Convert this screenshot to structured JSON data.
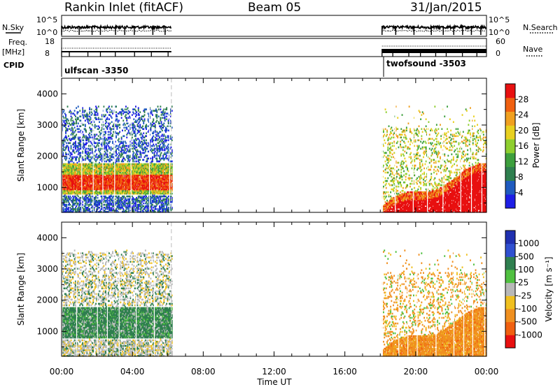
{
  "header": {
    "station": "Rankin Inlet (fitACF)",
    "beam": "Beam 05",
    "date": "31/Jan/2015"
  },
  "strip_labels": {
    "nsky": "N.Sky",
    "nsky_ticks": [
      "10^5",
      "10^0"
    ],
    "nsearch": "N.Search",
    "freq": "Freq.",
    "freq_unit": "[MHz]",
    "freq_ticks": [
      "18",
      "8"
    ],
    "nave": "Nave",
    "nave_ticks": [
      "60",
      "0"
    ],
    "cpid": "CPID",
    "nsearch_ticks": [
      "10^5",
      "10^0"
    ]
  },
  "cpid_programs": [
    {
      "name": "ulfscan -3350",
      "start_h": 0.0,
      "end_h": 6.2
    },
    {
      "name": "twofsound -3503",
      "start_h": 18.1,
      "end_h": 24.0
    }
  ],
  "colors": {
    "power": [
      "#1e1ee6",
      "#1f5bbf",
      "#2f7f4f",
      "#3d9f3d",
      "#8fcf2f",
      "#e8d020",
      "#f0a020",
      "#f06010",
      "#e81010"
    ],
    "velocity": [
      "#2030b0",
      "#3050d0",
      "#2f7f4f",
      "#50c040",
      "#b8b8b8",
      "#f0c020",
      "#f09020",
      "#f06010",
      "#e81010"
    ],
    "grid": "#000000"
  },
  "chart_data": [
    {
      "type": "heatmap",
      "title": "Power",
      "xlabel": "Time UT",
      "ylabel": "Slant Range [km]",
      "xlim": [
        0,
        24
      ],
      "ylim": [
        200,
        4500
      ],
      "x_ticks": [
        "00:00",
        "04:00",
        "08:00",
        "12:00",
        "16:00",
        "20:00",
        "00:00"
      ],
      "y_ticks": [
        1000,
        2000,
        3000,
        4000
      ],
      "colorbar": {
        "label": "Power [dB]",
        "ticks": [
          "28",
          "24",
          "20",
          "16",
          "12",
          "8",
          "4"
        ],
        "range": [
          0,
          32
        ]
      },
      "segments": [
        {
          "t_start": 0.0,
          "t_end": 6.2
        },
        {
          "t_start": 18.1,
          "t_end": 24.0
        }
      ]
    },
    {
      "type": "heatmap",
      "title": "Velocity",
      "xlabel": "Time UT",
      "ylabel": "Slant Range [km]",
      "xlim": [
        0,
        24
      ],
      "ylim": [
        200,
        4500
      ],
      "x_ticks": [
        "00:00",
        "04:00",
        "08:00",
        "12:00",
        "16:00",
        "20:00",
        "00:00"
      ],
      "y_ticks": [
        1000,
        2000,
        3000,
        4000
      ],
      "colorbar": {
        "label": "Velocity [m s⁻¹]",
        "ticks": [
          "1000",
          "500",
          "100",
          "25",
          "-25",
          "-100",
          "-500",
          "-1000"
        ]
      },
      "segments": [
        {
          "t_start": 0.0,
          "t_end": 6.2
        },
        {
          "t_start": 18.1,
          "t_end": 24.0
        }
      ]
    }
  ],
  "axis": {
    "xlabel": "Time UT"
  }
}
